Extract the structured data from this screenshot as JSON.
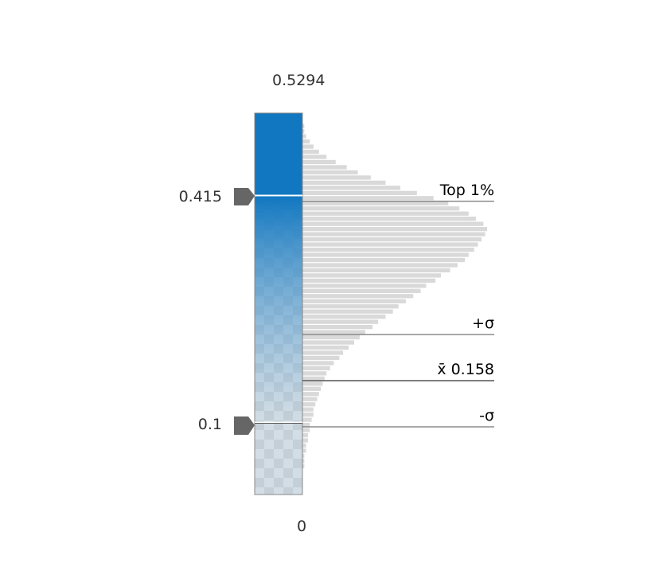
{
  "stretch": {
    "max_label": "0.5294",
    "min_label": "0",
    "max_value": 0.5294,
    "min_value": 0
  },
  "thresholds": {
    "high": {
      "label": "0.415",
      "value": 0.415
    },
    "low": {
      "label": "0.1",
      "value": 0.1
    }
  },
  "markers": {
    "top": {
      "label": "Top 1%",
      "value": 0.407
    },
    "plus_sigma": {
      "label": "+σ",
      "value": 0.222
    },
    "mean": {
      "label": "x̄ 0.158",
      "value": 0.158
    },
    "minus_sigma": {
      "label": "-σ",
      "value": 0.094
    }
  },
  "colors": {
    "ramp_high": "#1177c0",
    "ramp_low": "#d6e8f5",
    "histogram": "#d9d9d9",
    "handle": "#666666",
    "marker_line": "#555555"
  },
  "histogram_counts": [
    0.0,
    0.0,
    0.0,
    0.0,
    0.0,
    0.01,
    0.01,
    0.01,
    0.02,
    0.02,
    0.03,
    0.03,
    0.04,
    0.04,
    0.05,
    0.06,
    0.06,
    0.07,
    0.08,
    0.09,
    0.1,
    0.11,
    0.12,
    0.13,
    0.15,
    0.17,
    0.2,
    0.22,
    0.25,
    0.28,
    0.31,
    0.34,
    0.38,
    0.41,
    0.45,
    0.49,
    0.52,
    0.56,
    0.6,
    0.64,
    0.67,
    0.72,
    0.75,
    0.8,
    0.84,
    0.88,
    0.9,
    0.93,
    0.95,
    0.97,
    0.99,
    1.0,
    0.98,
    0.94,
    0.9,
    0.85,
    0.79,
    0.71,
    0.62,
    0.53,
    0.45,
    0.37,
    0.3,
    0.24,
    0.18,
    0.13,
    0.09,
    0.06,
    0.04,
    0.02,
    0.01,
    0.01,
    0.0,
    0.0
  ]
}
